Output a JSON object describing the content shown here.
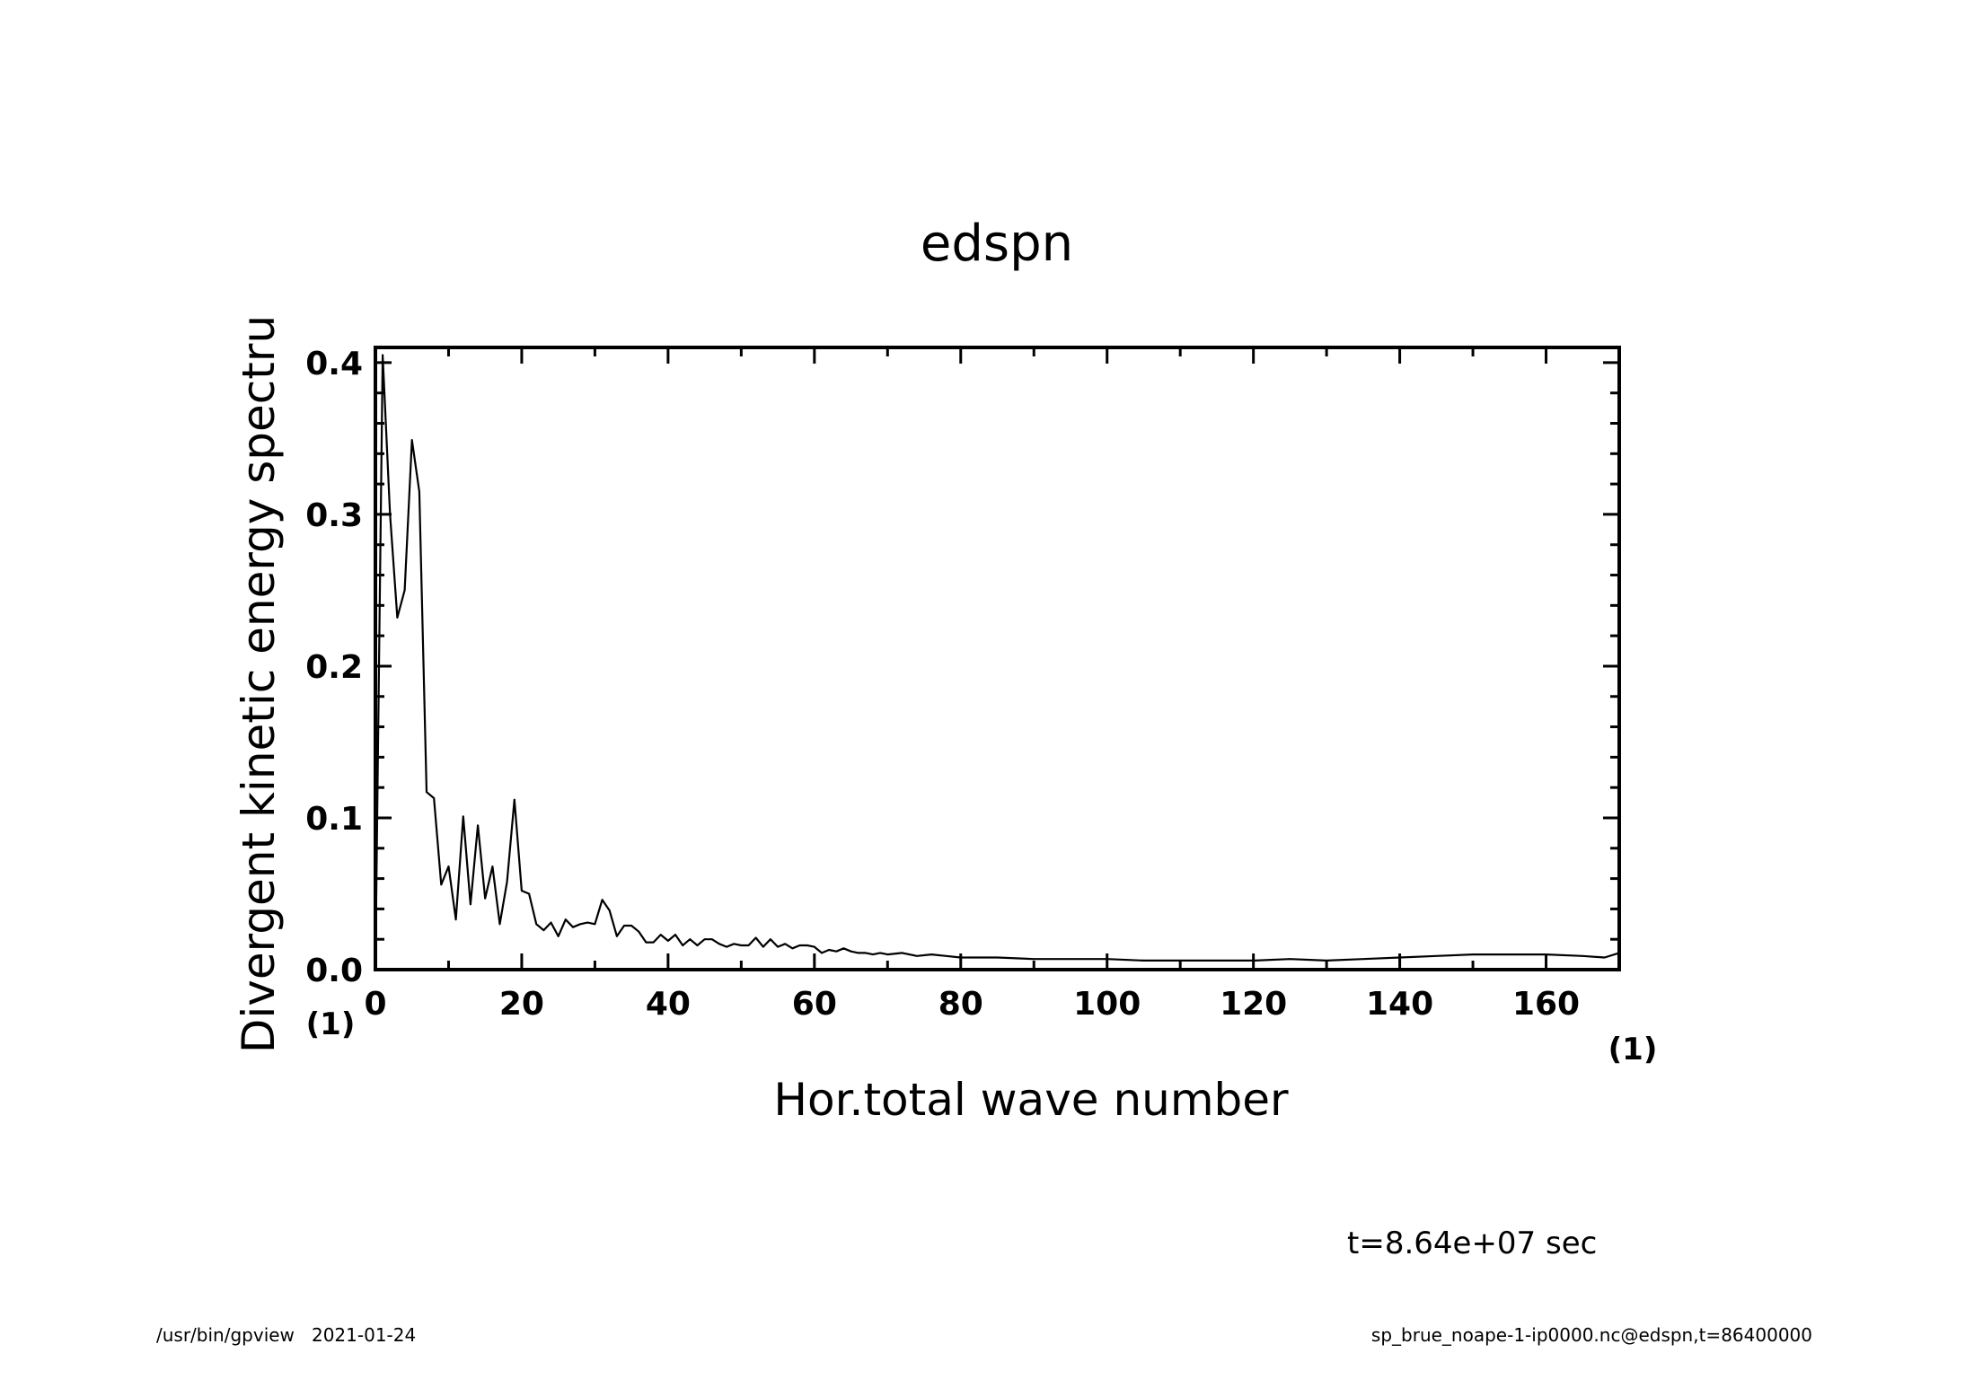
{
  "chart_data": {
    "type": "line",
    "title": "edspn",
    "xlabel": "Hor.total wave number",
    "ylabel": "Divergent kinetic energy spectru",
    "x_unit": "(1)",
    "y_unit": "(1)",
    "xlim": [
      0,
      170
    ],
    "ylim": [
      0,
      0.41
    ],
    "xticks": [
      0,
      20,
      40,
      60,
      80,
      100,
      120,
      140,
      160
    ],
    "xtick_labels": [
      "0",
      "20",
      "40",
      "60",
      "80",
      "100",
      "120",
      "140",
      "160"
    ],
    "yticks": [
      0.0,
      0.1,
      0.2,
      0.3,
      0.4
    ],
    "ytick_labels": [
      "0.0",
      "0.1",
      "0.2",
      "0.3",
      "0.4"
    ],
    "grid": false,
    "legend": "none",
    "line_color": "#000000",
    "series": [
      {
        "x": [
          0,
          1,
          2,
          3,
          4,
          5,
          6,
          7,
          8,
          9,
          10,
          11,
          12,
          13,
          14,
          15,
          16,
          17,
          18,
          19,
          20,
          21,
          22,
          23,
          24,
          25,
          26,
          27,
          28,
          29,
          30,
          31,
          32,
          33,
          34,
          35,
          36,
          37,
          38,
          39,
          40,
          41,
          42,
          43,
          44,
          45,
          46,
          47,
          48,
          49,
          50,
          51,
          52,
          53,
          54,
          55,
          56,
          57,
          58,
          59,
          60,
          61,
          62,
          63,
          64,
          65,
          66,
          67,
          68,
          69,
          70,
          72,
          74,
          76,
          78,
          80,
          85,
          90,
          95,
          100,
          105,
          110,
          115,
          120,
          125,
          130,
          135,
          140,
          145,
          150,
          155,
          160,
          165,
          168,
          170
        ],
        "y": [
          0.0,
          0.405,
          0.3,
          0.232,
          0.25,
          0.349,
          0.315,
          0.117,
          0.113,
          0.056,
          0.068,
          0.033,
          0.101,
          0.043,
          0.095,
          0.047,
          0.068,
          0.03,
          0.058,
          0.112,
          0.052,
          0.05,
          0.03,
          0.026,
          0.031,
          0.022,
          0.033,
          0.028,
          0.03,
          0.031,
          0.03,
          0.046,
          0.039,
          0.022,
          0.029,
          0.029,
          0.025,
          0.018,
          0.018,
          0.023,
          0.019,
          0.023,
          0.016,
          0.02,
          0.016,
          0.02,
          0.02,
          0.017,
          0.015,
          0.017,
          0.016,
          0.016,
          0.021,
          0.015,
          0.02,
          0.015,
          0.017,
          0.014,
          0.016,
          0.016,
          0.015,
          0.011,
          0.013,
          0.012,
          0.014,
          0.012,
          0.011,
          0.011,
          0.01,
          0.011,
          0.01,
          0.011,
          0.009,
          0.01,
          0.009,
          0.008,
          0.008,
          0.007,
          0.007,
          0.007,
          0.006,
          0.006,
          0.006,
          0.006,
          0.007,
          0.006,
          0.007,
          0.008,
          0.009,
          0.01,
          0.01,
          0.01,
          0.009,
          0.008,
          0.011
        ]
      }
    ]
  },
  "annotations": {
    "time": "t=8.64e+07 sec",
    "footer_left": "/usr/bin/gpview   2021-01-24",
    "footer_right": "sp_brue_noape-1-ip0000.nc@edspn,t=86400000"
  }
}
